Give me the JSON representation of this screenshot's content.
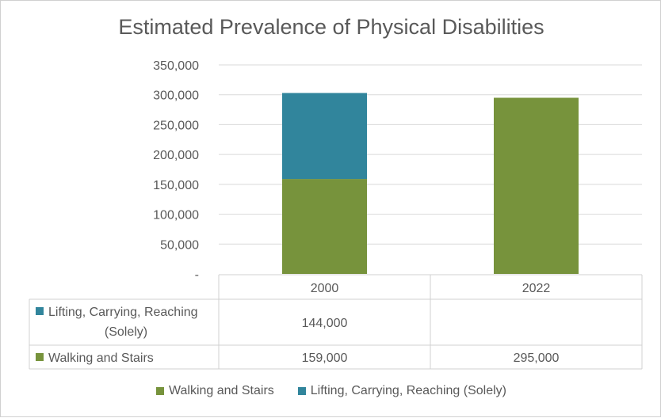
{
  "chart_data": {
    "type": "bar",
    "stacked": true,
    "title": "Estimated Prevalence of Physical Disabilities",
    "categories": [
      "2000",
      "2022"
    ],
    "series": [
      {
        "name": "Walking and Stairs",
        "values": [
          159000,
          295000
        ],
        "labels": [
          "159,000",
          "295,000"
        ],
        "color": "#77933C"
      },
      {
        "name": "Lifting, Carrying, Reaching (Solely)",
        "values": [
          144000,
          null
        ],
        "labels": [
          "144,000",
          ""
        ],
        "color": "#31859C"
      }
    ],
    "table_row_labels": [
      "Lifting, Carrying, Reaching",
      "(Solely)",
      "Walking and Stairs"
    ],
    "ylim": [
      0,
      350000
    ],
    "yticks": [
      0,
      50000,
      100000,
      150000,
      200000,
      250000,
      300000,
      350000
    ],
    "ytick_labels": [
      "-",
      "50,000",
      "100,000",
      "150,000",
      "200,000",
      "250,000",
      "300,000",
      "350,000"
    ],
    "grid": true,
    "legend_position": "bottom",
    "data_table": true
  }
}
